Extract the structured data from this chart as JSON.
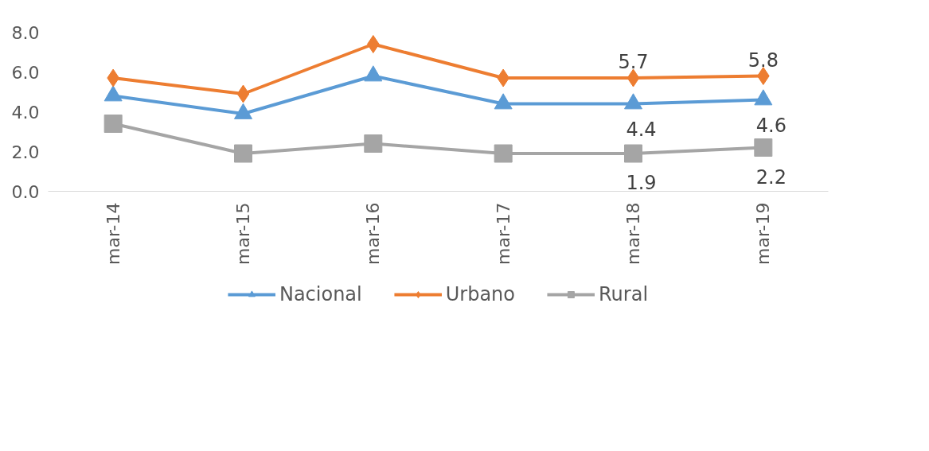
{
  "chart_data": {
    "type": "line",
    "categories": [
      "mar-14",
      "mar-15",
      "mar-16",
      "mar-17",
      "mar-18",
      "mar-19"
    ],
    "series": [
      {
        "name": "Nacional",
        "color": "#5b9bd5",
        "marker": "triangle",
        "values": [
          4.8,
          3.9,
          5.8,
          4.4,
          4.4,
          4.6
        ],
        "value_labels": [
          null,
          null,
          null,
          null,
          "4.4",
          "4.6"
        ]
      },
      {
        "name": "Urbano",
        "color": "#ed7d31",
        "marker": "diamond",
        "values": [
          5.7,
          4.9,
          7.4,
          5.7,
          5.7,
          5.8
        ],
        "value_labels": [
          null,
          null,
          null,
          null,
          "5.7",
          "5.8"
        ]
      },
      {
        "name": "Rural",
        "color": "#a5a5a5",
        "marker": "square",
        "values": [
          3.4,
          1.9,
          2.4,
          1.9,
          1.9,
          2.2
        ],
        "value_labels": [
          null,
          null,
          null,
          null,
          "1.9",
          "2.2"
        ]
      }
    ],
    "ylim": [
      0,
      8
    ],
    "yticks": [
      {
        "value": 0,
        "label": "0.0"
      },
      {
        "value": 2,
        "label": "2.0"
      },
      {
        "value": 4,
        "label": "4.0"
      },
      {
        "value": 6,
        "label": "6.0"
      },
      {
        "value": 8,
        "label": "8.0"
      }
    ],
    "grid": false,
    "legend": "bottom"
  }
}
